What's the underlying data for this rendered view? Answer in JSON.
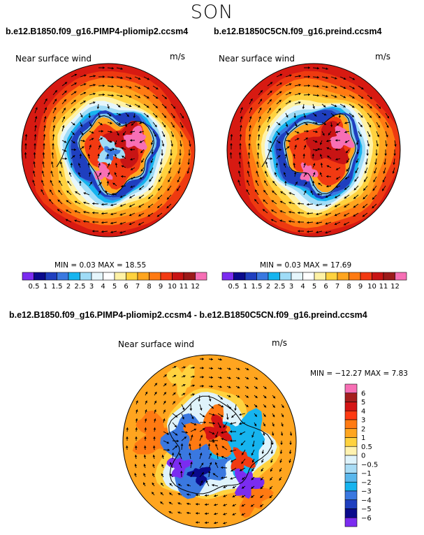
{
  "page": {
    "season": "SON"
  },
  "chart_data": [
    {
      "type": "heatmap",
      "subtype": "polar stereographic wind map with vectors",
      "case": "b.e12.B1850.f09_g16.PIMP4-pliomip2.ccsm4",
      "label": "Near surface wind",
      "units": "m/s",
      "min": 0.03,
      "max": 18.55,
      "min_text": "MIN =   0.03 MAX =  18.55",
      "colorbar": {
        "orientation": "horizontal",
        "levels": [
          "0.5",
          "1",
          "1.5",
          "2",
          "2.5",
          "3",
          "4",
          "5",
          "6",
          "7",
          "8",
          "9",
          "10",
          "11",
          "12"
        ],
        "colors": [
          "#7b2cf0",
          "#0a0a8c",
          "#1f3fbf",
          "#3a78e0",
          "#16b4ef",
          "#9fdcf7",
          "#e6f6fc",
          "#ffffff",
          "#fff2a6",
          "#ffd23f",
          "#ffa51f",
          "#ff7a12",
          "#f23a12",
          "#c81414",
          "#9c1a1a",
          "#f76fb5"
        ]
      }
    },
    {
      "type": "heatmap",
      "subtype": "polar stereographic wind map with vectors",
      "case": "b.e12.B1850C5CN.f09_g16.preind.ccsm4",
      "label": "Near surface wind",
      "units": "m/s",
      "min": 0.03,
      "max": 17.69,
      "min_text": "MIN =   0.03 MAX =  17.69",
      "colorbar": {
        "orientation": "horizontal",
        "levels": [
          "0.5",
          "1",
          "1.5",
          "2",
          "2.5",
          "3",
          "4",
          "5",
          "6",
          "7",
          "8",
          "9",
          "10",
          "11",
          "12"
        ],
        "colors": [
          "#7b2cf0",
          "#0a0a8c",
          "#1f3fbf",
          "#3a78e0",
          "#16b4ef",
          "#9fdcf7",
          "#e6f6fc",
          "#ffffff",
          "#fff2a6",
          "#ffd23f",
          "#ffa51f",
          "#ff7a12",
          "#f23a12",
          "#c81414",
          "#9c1a1a",
          "#f76fb5"
        ]
      }
    },
    {
      "type": "heatmap",
      "subtype": "polar stereographic wind difference map with vectors",
      "case": "b.e12.B1850.f09_g16.PIMP4-pliomip2.ccsm4 - b.e12.B1850C5CN.f09_g16.preind.ccsm4",
      "label": "Near surface wind",
      "units": "m/s",
      "min": -12.27,
      "max": 7.83,
      "min_text": "MIN = −12.27 MAX =    7.83",
      "colorbar": {
        "orientation": "vertical",
        "levels": [
          "6",
          "5",
          "4",
          "3",
          "2",
          "1",
          "0.5",
          "0",
          "−0.5",
          "−1",
          "−2",
          "−3",
          "−4",
          "−5",
          "−6"
        ],
        "colors": [
          "#f76fb5",
          "#a51e1e",
          "#d41414",
          "#ff3a12",
          "#ff7a12",
          "#ffa51f",
          "#ffd23f",
          "#fff2b0",
          "#dff3fb",
          "#a9dcf5",
          "#5ab7ec",
          "#16b4ef",
          "#3a78e0",
          "#1f3fbf",
          "#0a0a8c",
          "#7b2cf0"
        ]
      }
    }
  ]
}
